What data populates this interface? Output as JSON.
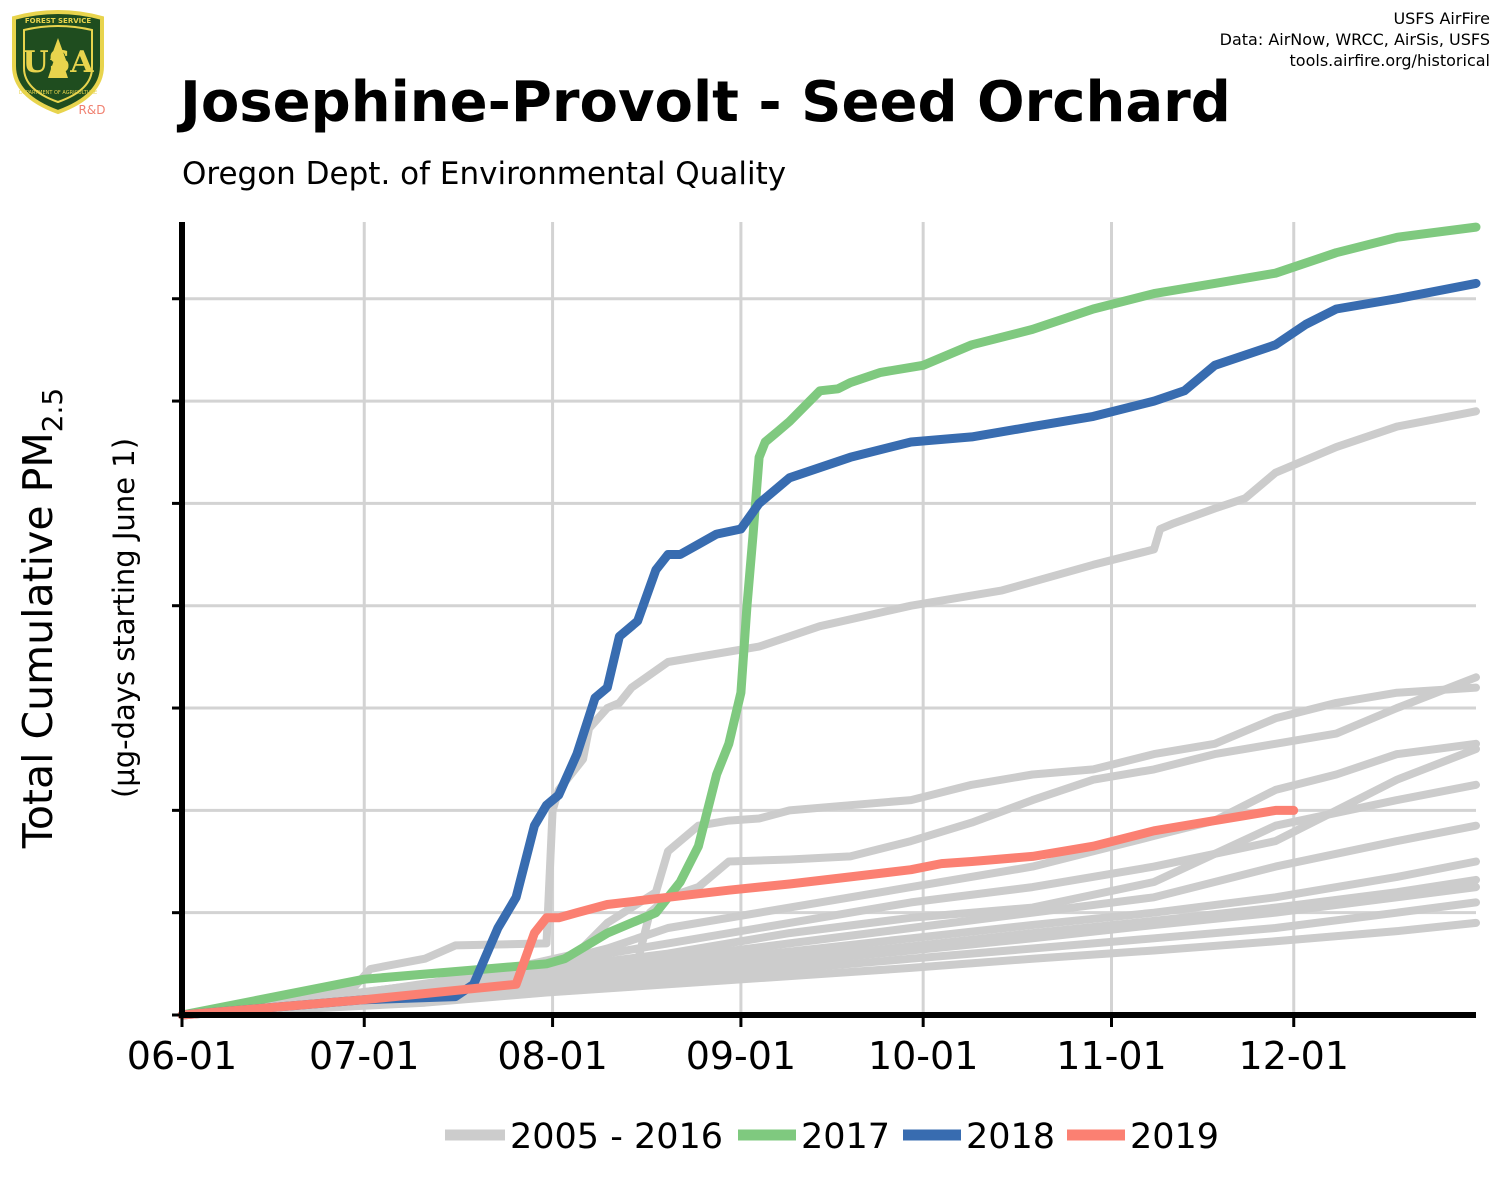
{
  "header": {
    "title": "Josephine-Provolt - Seed Orchard",
    "subtitle": "Oregon Dept. of Environmental Quality",
    "credits": [
      "USFS AirFire",
      "Data: AirNow, WRCC, AirSis, USFS",
      "tools.airfire.org/historical"
    ],
    "logo": {
      "top_text": "FOREST SERVICE",
      "letters": "USA",
      "bottom_text": "DEPARTMENT OF AGRICULTURE",
      "rd": "R&D"
    }
  },
  "colors": {
    "historical": "#cccccc",
    "2017": "#7fc97f",
    "2018": "#386cb0",
    "2019": "#fb8072",
    "grid": "#d3d3d3",
    "logo_green": "#1f4d1f",
    "logo_yellow": "#e8d44d",
    "rd": "#f08070"
  },
  "chart_data": {
    "type": "line",
    "title": "Josephine-Provolt - Seed Orchard",
    "subtitle": "Oregon Dept. of Environmental Quality",
    "ylabel": "Total Cumulative PM2.5",
    "ylabel_main": "Total Cumulative PM",
    "ylabel_sub": "2.5",
    "ylabel_note": "(µg-days starting June 1)",
    "xlabel": "",
    "x_tick_labels": [
      "06-01",
      "07-01",
      "08-01",
      "09-01",
      "10-01",
      "11-01",
      "12-01"
    ],
    "x_tick_days": [
      0,
      30,
      61,
      92,
      122,
      153,
      183
    ],
    "xlim": [
      0,
      213
    ],
    "ylim": [
      0,
      775
    ],
    "y_ticks": [
      0,
      100,
      200,
      300,
      400,
      500,
      600,
      700
    ],
    "y_tick_labels_shown": false,
    "grid": true,
    "legend_position": "bottom",
    "legend": [
      "2005 - 2016",
      "2017",
      "2018",
      "2019"
    ],
    "historical_series": [
      {
        "x": [
          0,
          20,
          28,
          31,
          40,
          45,
          60,
          61,
          62,
          66,
          67,
          70,
          72,
          74,
          80,
          95,
          105,
          120,
          135,
          150,
          160,
          161,
          163,
          170,
          175,
          180,
          190,
          200,
          213
        ],
        "y": [
          0,
          20,
          25,
          45,
          55,
          68,
          70,
          200,
          220,
          250,
          280,
          300,
          305,
          320,
          345,
          360,
          380,
          400,
          415,
          440,
          455,
          475,
          480,
          495,
          505,
          530,
          555,
          575,
          590
        ]
      },
      {
        "x": [
          0,
          30,
          45,
          60,
          75,
          77,
          80,
          85,
          90,
          100,
          110,
          120,
          130,
          140,
          150,
          160,
          170,
          180,
          190,
          200,
          213
        ],
        "y": [
          0,
          22,
          35,
          48,
          52,
          100,
          115,
          125,
          150,
          152,
          155,
          170,
          188,
          210,
          230,
          240,
          255,
          265,
          275,
          300,
          330
        ]
      },
      {
        "x": [
          0,
          30,
          50,
          65,
          70,
          78,
          80,
          85,
          90,
          95,
          100,
          110,
          120,
          130,
          140,
          150,
          160,
          170,
          180,
          190,
          200,
          213
        ],
        "y": [
          0,
          20,
          40,
          60,
          90,
          120,
          160,
          185,
          190,
          192,
          200,
          205,
          210,
          225,
          235,
          240,
          255,
          265,
          290,
          305,
          315,
          320
        ]
      },
      {
        "x": [
          0,
          40,
          60,
          70,
          80,
          100,
          120,
          140,
          150,
          160,
          170,
          175,
          180,
          190,
          200,
          213
        ],
        "y": [
          0,
          30,
          50,
          65,
          85,
          105,
          125,
          145,
          160,
          175,
          190,
          205,
          220,
          235,
          255,
          265
        ]
      },
      {
        "x": [
          0,
          40,
          60,
          80,
          100,
          120,
          140,
          160,
          180,
          190,
          200,
          213
        ],
        "y": [
          0,
          30,
          50,
          70,
          90,
          110,
          125,
          145,
          170,
          200,
          230,
          260
        ]
      },
      {
        "x": [
          0,
          40,
          60,
          80,
          100,
          120,
          140,
          160,
          180,
          200,
          213
        ],
        "y": [
          0,
          28,
          45,
          60,
          80,
          95,
          105,
          130,
          185,
          210,
          225
        ]
      },
      {
        "x": [
          0,
          40,
          60,
          80,
          100,
          120,
          140,
          160,
          180,
          200,
          213
        ],
        "y": [
          0,
          25,
          40,
          55,
          70,
          85,
          100,
          115,
          145,
          170,
          185
        ]
      },
      {
        "x": [
          0,
          40,
          60,
          80,
          100,
          120,
          140,
          160,
          180,
          200,
          213
        ],
        "y": [
          0,
          22,
          36,
          50,
          62,
          75,
          88,
          100,
          115,
          135,
          150
        ]
      },
      {
        "x": [
          0,
          40,
          60,
          80,
          100,
          120,
          140,
          160,
          180,
          200,
          213
        ],
        "y": [
          0,
          20,
          32,
          44,
          55,
          67,
          80,
          92,
          105,
          120,
          132
        ]
      },
      {
        "x": [
          0,
          40,
          60,
          80,
          100,
          120,
          140,
          160,
          180,
          200,
          213
        ],
        "y": [
          0,
          18,
          30,
          42,
          52,
          63,
          75,
          88,
          100,
          115,
          125
        ]
      },
      {
        "x": [
          0,
          40,
          60,
          80,
          100,
          120,
          140,
          160,
          180,
          200,
          213
        ],
        "y": [
          0,
          15,
          26,
          35,
          45,
          55,
          65,
          75,
          85,
          100,
          110
        ]
      },
      {
        "x": [
          0,
          40,
          60,
          80,
          100,
          120,
          140,
          160,
          180,
          200,
          213
        ],
        "y": [
          0,
          12,
          22,
          30,
          38,
          46,
          55,
          63,
          72,
          82,
          90
        ]
      }
    ],
    "series": [
      {
        "name": "2017",
        "x": [
          0,
          30,
          50,
          60,
          63,
          70,
          78,
          82,
          85,
          88,
          90,
          92,
          93,
          94,
          95,
          96,
          98,
          100,
          105,
          108,
          110,
          115,
          122,
          130,
          140,
          150,
          160,
          170,
          180,
          190,
          200,
          213
        ],
        "y": [
          0,
          35,
          45,
          50,
          55,
          80,
          100,
          130,
          165,
          235,
          265,
          315,
          400,
          470,
          545,
          560,
          570,
          580,
          610,
          612,
          618,
          628,
          635,
          655,
          670,
          690,
          705,
          715,
          725,
          745,
          760,
          770
        ]
      },
      {
        "name": "2018",
        "x": [
          0,
          30,
          45,
          48,
          52,
          55,
          58,
          60,
          62,
          65,
          68,
          70,
          72,
          75,
          78,
          80,
          82,
          85,
          88,
          92,
          95,
          100,
          110,
          120,
          130,
          140,
          150,
          160,
          165,
          170,
          180,
          185,
          190,
          200,
          213
        ],
        "y": [
          0,
          15,
          18,
          30,
          85,
          115,
          185,
          205,
          215,
          255,
          310,
          320,
          370,
          385,
          435,
          450,
          450,
          460,
          470,
          475,
          500,
          525,
          545,
          560,
          565,
          575,
          585,
          600,
          610,
          635,
          655,
          675,
          690,
          700,
          715
        ]
      },
      {
        "name": "2019",
        "x": [
          0,
          30,
          55,
          58,
          60,
          62,
          65,
          70,
          80,
          90,
          100,
          110,
          120,
          125,
          130,
          140,
          150,
          160,
          170,
          175,
          180,
          183
        ],
        "y": [
          0,
          15,
          30,
          80,
          95,
          95,
          100,
          108,
          115,
          122,
          128,
          135,
          142,
          148,
          150,
          155,
          165,
          180,
          190,
          195,
          200,
          200
        ]
      }
    ]
  }
}
